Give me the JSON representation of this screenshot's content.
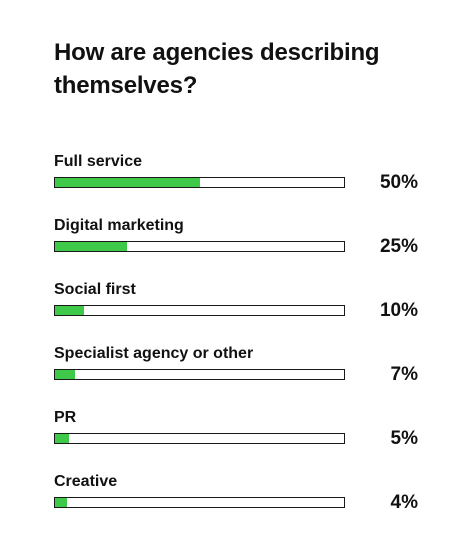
{
  "chart_data": {
    "type": "bar",
    "title": "How are agencies describing themselves?",
    "categories": [
      "Full service",
      "Digital marketing",
      "Social first",
      "Specialist agency or other",
      "PR",
      "Creative"
    ],
    "values": [
      50,
      25,
      10,
      7,
      5,
      4
    ],
    "value_labels": [
      "50%",
      "25%",
      "10%",
      "7%",
      "5%",
      "4%"
    ],
    "xlim": [
      0,
      100
    ],
    "orientation": "horizontal",
    "bar_color": "#3ec94a",
    "grid": false
  }
}
